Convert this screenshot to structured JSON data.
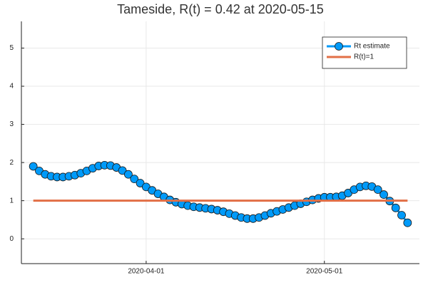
{
  "chart_data": {
    "type": "line",
    "title": "Tameside, R(t) = 0.42 at 2020-05-15",
    "series": [
      {
        "name": "Rt estimate",
        "color": "#009af9",
        "markers": true,
        "x": [
          "2020-03-13",
          "2020-03-14",
          "2020-03-15",
          "2020-03-16",
          "2020-03-17",
          "2020-03-18",
          "2020-03-19",
          "2020-03-20",
          "2020-03-21",
          "2020-03-22",
          "2020-03-23",
          "2020-03-24",
          "2020-03-25",
          "2020-03-26",
          "2020-03-27",
          "2020-03-28",
          "2020-03-29",
          "2020-03-30",
          "2020-03-31",
          "2020-04-01",
          "2020-04-02",
          "2020-04-03",
          "2020-04-04",
          "2020-04-05",
          "2020-04-06",
          "2020-04-07",
          "2020-04-08",
          "2020-04-09",
          "2020-04-10",
          "2020-04-11",
          "2020-04-12",
          "2020-04-13",
          "2020-04-14",
          "2020-04-15",
          "2020-04-16",
          "2020-04-17",
          "2020-04-18",
          "2020-04-19",
          "2020-04-20",
          "2020-04-21",
          "2020-04-22",
          "2020-04-23",
          "2020-04-24",
          "2020-04-25",
          "2020-04-26",
          "2020-04-27",
          "2020-04-28",
          "2020-04-29",
          "2020-04-30",
          "2020-05-01",
          "2020-05-02",
          "2020-05-03",
          "2020-05-04",
          "2020-05-05",
          "2020-05-06",
          "2020-05-07",
          "2020-05-08",
          "2020-05-09",
          "2020-05-10",
          "2020-05-11",
          "2020-05-12",
          "2020-05-13",
          "2020-05-14",
          "2020-05-15"
        ],
        "values": [
          1.9,
          1.78,
          1.69,
          1.64,
          1.62,
          1.62,
          1.64,
          1.67,
          1.72,
          1.78,
          1.85,
          1.91,
          1.93,
          1.92,
          1.87,
          1.79,
          1.69,
          1.57,
          1.46,
          1.36,
          1.27,
          1.18,
          1.1,
          1.02,
          0.96,
          0.91,
          0.87,
          0.84,
          0.82,
          0.8,
          0.78,
          0.75,
          0.71,
          0.66,
          0.61,
          0.56,
          0.53,
          0.53,
          0.56,
          0.61,
          0.67,
          0.72,
          0.77,
          0.82,
          0.87,
          0.92,
          0.97,
          1.02,
          1.06,
          1.09,
          1.09,
          1.1,
          1.13,
          1.2,
          1.29,
          1.36,
          1.39,
          1.37,
          1.29,
          1.16,
          0.99,
          0.81,
          0.62,
          0.42
        ]
      },
      {
        "name": "R(t)=1",
        "color": "#e26f46",
        "markers": false,
        "x": [
          "2020-03-13",
          "2020-05-15"
        ],
        "values": [
          1,
          1
        ]
      }
    ],
    "xlim": [
      "2020-03-11",
      "2020-05-17"
    ],
    "xticks": [
      "2020-04-01",
      "2020-05-01"
    ],
    "ylim": [
      -0.65,
      5.7
    ],
    "yticks": [
      0,
      1,
      2,
      3,
      4,
      5
    ],
    "grid": true,
    "legend": "top-right"
  }
}
